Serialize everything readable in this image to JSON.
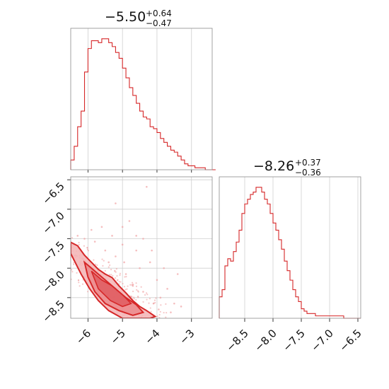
{
  "chart_data": {
    "type": "corner",
    "color": "#d62728",
    "parameters": [
      {
        "title_main": "−5.50",
        "title_sup": "+0.64",
        "title_sub": "−0.47"
      },
      {
        "title_main": "−8.26",
        "title_sup": "+0.37",
        "title_sub": "−0.36"
      }
    ],
    "hist_a": {
      "xlim": [
        -6.5,
        -2.4
      ],
      "bin_edges_start": -6.5,
      "bin_width": 0.1,
      "counts": [
        5,
        12,
        22,
        30,
        50,
        62,
        66,
        66,
        65,
        67,
        67,
        65,
        63,
        60,
        57,
        52,
        47,
        42,
        38,
        34,
        30,
        27,
        26,
        22,
        21,
        19,
        16,
        14,
        12,
        10,
        9,
        7,
        5,
        3,
        2,
        2,
        1,
        1,
        1,
        0,
        0,
        0
      ]
    },
    "hist_b": {
      "xlim": [
        -8.95,
        -6.45
      ],
      "bin_edges_start": -8.95,
      "bin_width": 0.05,
      "counts": [
        9,
        12,
        22,
        25,
        24,
        28,
        32,
        37,
        44,
        48,
        50,
        52,
        53,
        55,
        55,
        53,
        50,
        48,
        44,
        40,
        37,
        33,
        29,
        24,
        20,
        16,
        12,
        9,
        7,
        4,
        3,
        2,
        2,
        2,
        1,
        1,
        1,
        1,
        1,
        1,
        1,
        1,
        1,
        1,
        0,
        0,
        0,
        0,
        0,
        0
      ]
    },
    "scatter_2d": {
      "xlim": [
        -6.5,
        -2.4
      ],
      "ylim": [
        -8.85,
        -6.45
      ],
      "contour_outer": [
        [
          -6.5,
          -7.56
        ],
        [
          -6.3,
          -7.62
        ],
        [
          -6.1,
          -7.78
        ],
        [
          -5.9,
          -7.9
        ],
        [
          -5.7,
          -8.02
        ],
        [
          -5.5,
          -8.1
        ],
        [
          -5.3,
          -8.16
        ],
        [
          -5.1,
          -8.3
        ],
        [
          -4.9,
          -8.42
        ],
        [
          -4.7,
          -8.55
        ],
        [
          -4.5,
          -8.65
        ],
        [
          -4.3,
          -8.72
        ],
        [
          -4.05,
          -8.82
        ],
        [
          -4.2,
          -8.85
        ],
        [
          -4.5,
          -8.85
        ],
        [
          -5.0,
          -8.85
        ],
        [
          -5.4,
          -8.72
        ],
        [
          -5.7,
          -8.55
        ],
        [
          -5.95,
          -8.35
        ],
        [
          -6.2,
          -8.1
        ],
        [
          -6.5,
          -7.75
        ]
      ],
      "contour_inner": [
        [
          -6.1,
          -7.9
        ],
        [
          -5.8,
          -8.05
        ],
        [
          -5.5,
          -8.2
        ],
        [
          -5.2,
          -8.35
        ],
        [
          -4.9,
          -8.5
        ],
        [
          -4.6,
          -8.62
        ],
        [
          -4.4,
          -8.75
        ],
        [
          -4.7,
          -8.8
        ],
        [
          -5.1,
          -8.72
        ],
        [
          -5.5,
          -8.6
        ],
        [
          -5.8,
          -8.4
        ],
        [
          -6.0,
          -8.15
        ]
      ],
      "contour_core": [
        [
          -5.9,
          -8.05
        ],
        [
          -5.6,
          -8.2
        ],
        [
          -5.3,
          -8.3
        ],
        [
          -5.0,
          -8.45
        ],
        [
          -4.75,
          -8.6
        ],
        [
          -5.0,
          -8.65
        ],
        [
          -5.35,
          -8.55
        ],
        [
          -5.7,
          -8.35
        ]
      ],
      "scatter_points": [
        [
          -5.2,
          -6.9
        ],
        [
          -4.3,
          -6.62
        ],
        [
          -4.8,
          -7.2
        ],
        [
          -5.6,
          -7.3
        ],
        [
          -5.9,
          -7.35
        ],
        [
          -4.4,
          -7.5
        ],
        [
          -4.6,
          -7.7
        ],
        [
          -5.0,
          -7.6
        ],
        [
          -4.2,
          -7.9
        ],
        [
          -3.8,
          -8.0
        ],
        [
          -3.4,
          -8.1
        ],
        [
          -4.0,
          -8.2
        ],
        [
          -4.5,
          -8.0
        ],
        [
          -5.2,
          -7.8
        ],
        [
          -5.5,
          -7.7
        ],
        [
          -6.1,
          -7.5
        ],
        [
          -6.3,
          -7.45
        ],
        [
          -5.8,
          -7.55
        ],
        [
          -4.9,
          -8.1
        ],
        [
          -4.7,
          -8.3
        ],
        [
          -4.4,
          -8.4
        ],
        [
          -3.9,
          -8.5
        ],
        [
          -3.7,
          -8.35
        ],
        [
          -3.5,
          -8.6
        ],
        [
          -3.6,
          -8.75
        ],
        [
          -4.1,
          -8.6
        ],
        [
          -5.0,
          -7.3
        ],
        [
          -5.3,
          -7.45
        ],
        [
          -4.95,
          -7.9
        ],
        [
          -5.4,
          -7.9
        ],
        [
          -4.15,
          -7.7
        ],
        [
          -3.95,
          -8.7
        ],
        [
          -3.3,
          -8.65
        ],
        [
          -4.6,
          -7.45
        ]
      ],
      "xticks": [
        -6,
        -5,
        -4,
        -3
      ],
      "xticklabels": [
        "−6",
        "−5",
        "−4",
        "−3"
      ],
      "yticks": [
        -6.5,
        -7.0,
        -7.5,
        -8.0,
        -8.5
      ],
      "yticklabels": [
        "−6.5",
        "−7.0",
        "−7.5",
        "−8.0",
        "−8.5"
      ]
    },
    "hist_b_xticks": [
      -8.5,
      -8.0,
      -7.5,
      -7.0,
      -6.5
    ],
    "hist_b_xticklabels": [
      "−8.5",
      "−8.0",
      "−7.5",
      "−7.0",
      "−6.5"
    ],
    "grid": true
  }
}
